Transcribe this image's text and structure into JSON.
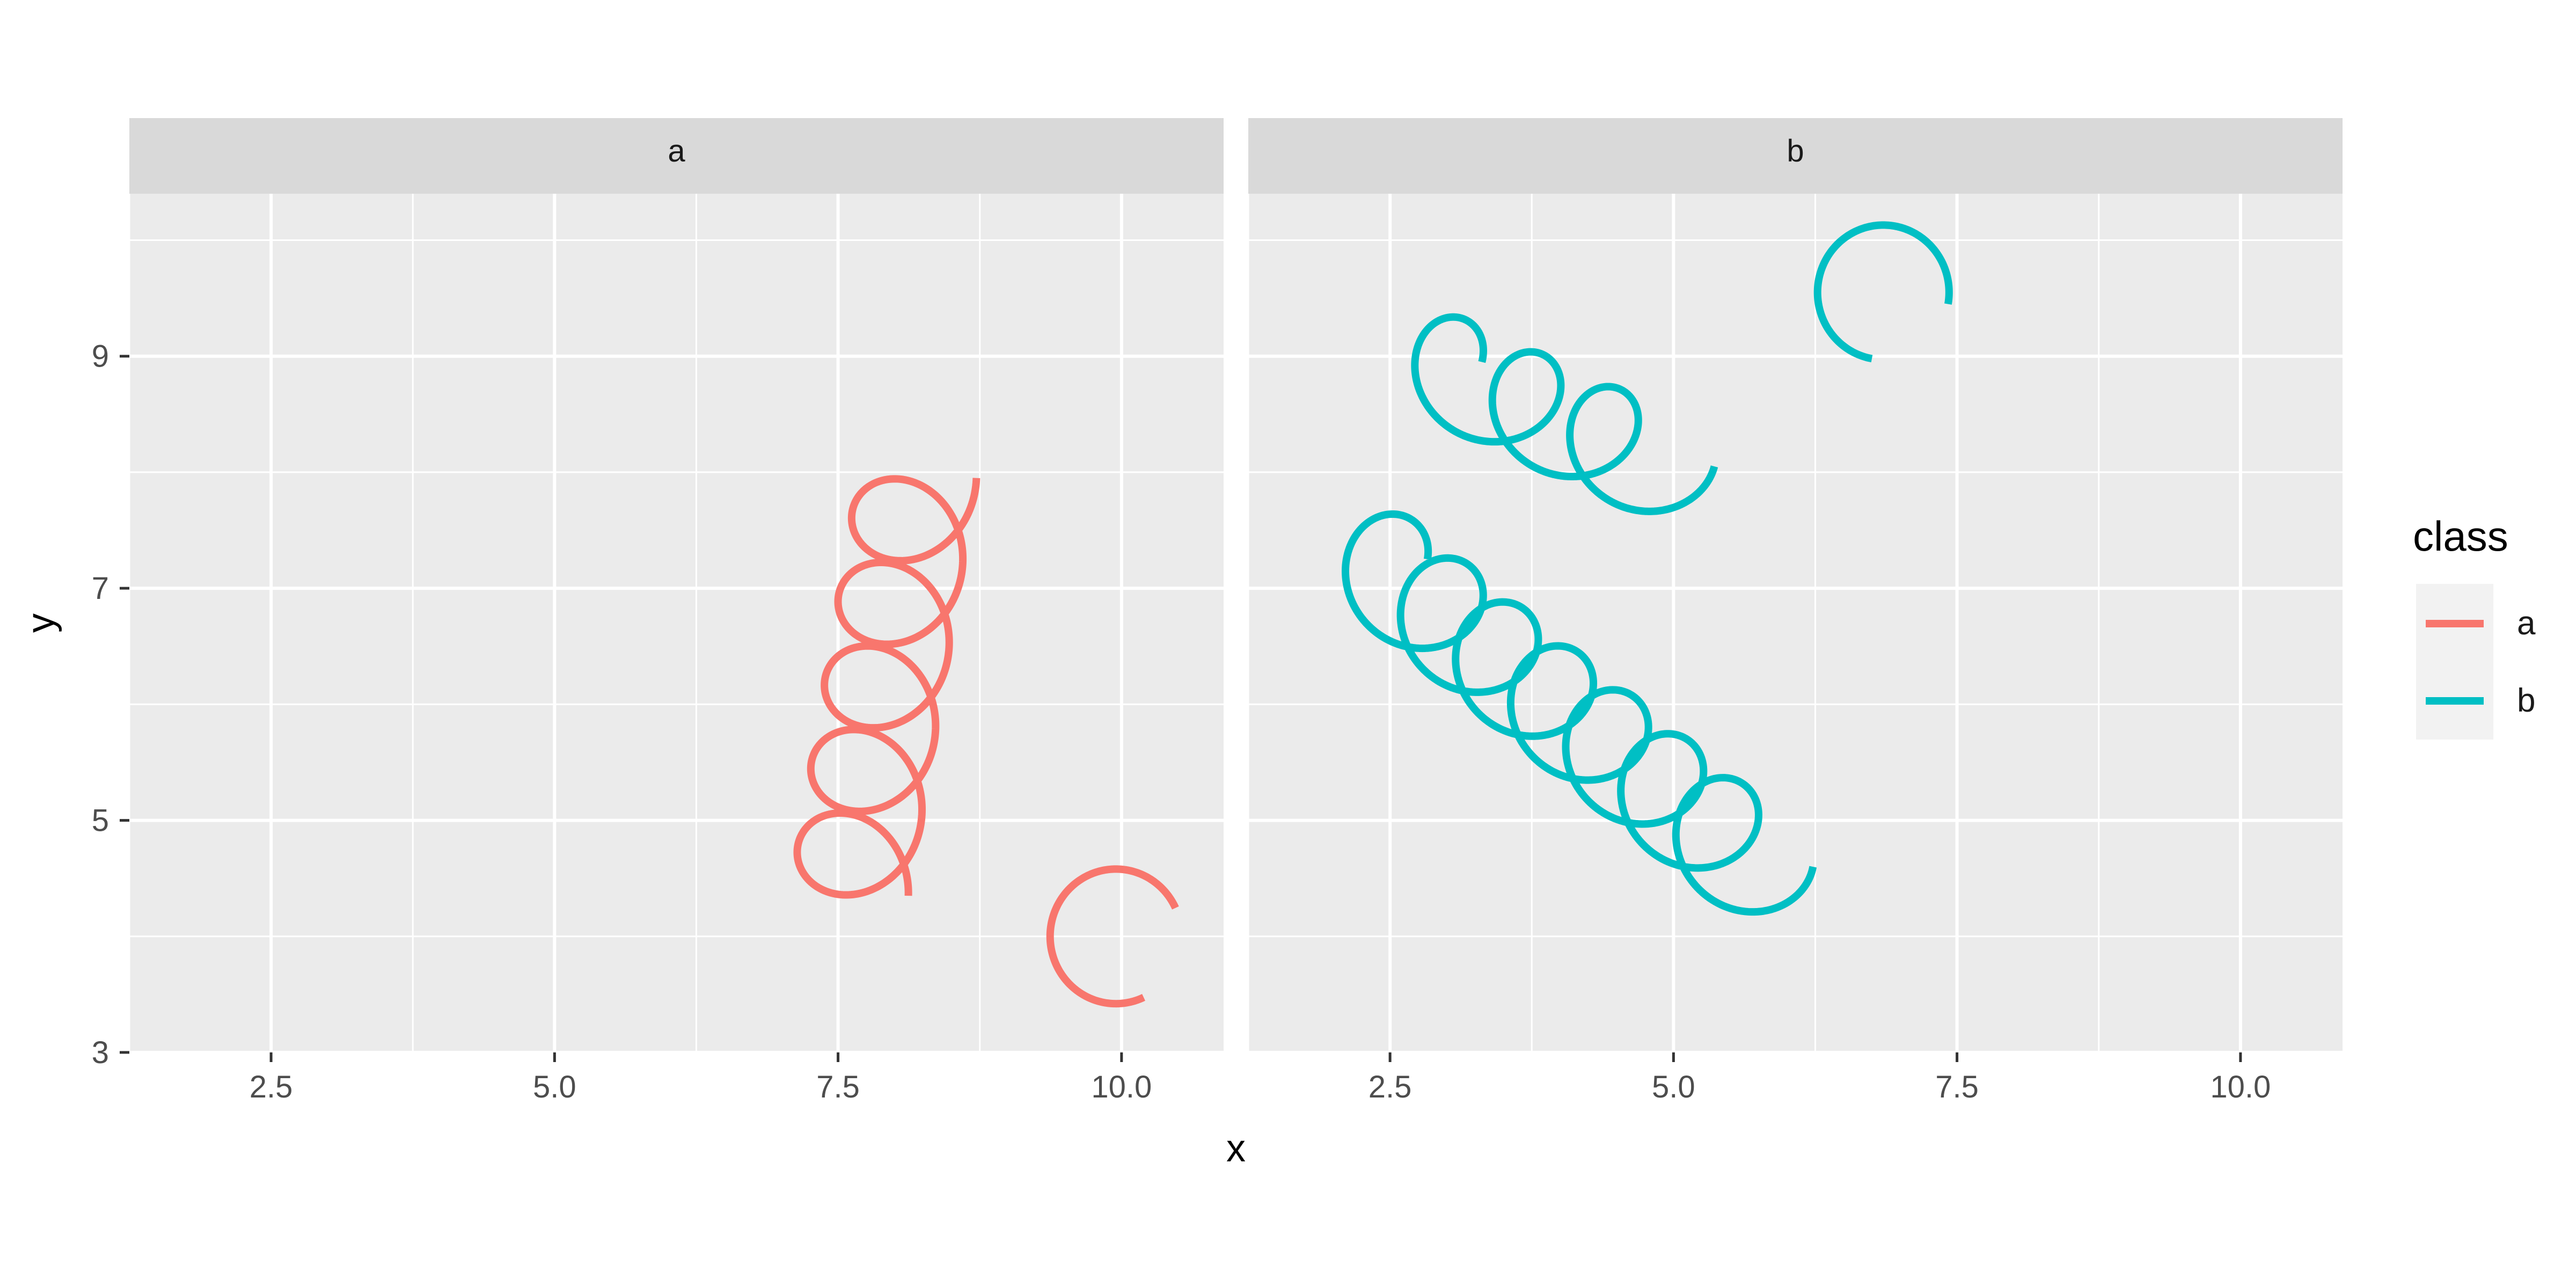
{
  "chart_data": {
    "type": "line",
    "facets": [
      "a",
      "b"
    ],
    "xlabel": "x",
    "ylabel": "y",
    "xlim": [
      1.25,
      10.9
    ],
    "ylim": [
      3,
      10.4
    ],
    "x_ticks": [
      2.5,
      5.0,
      7.5,
      10.0
    ],
    "x_tick_labels": [
      "2.5",
      "5.0",
      "7.5",
      "10.0"
    ],
    "y_ticks": [
      3,
      5,
      7,
      9
    ],
    "y_tick_labels": [
      "3",
      "5",
      "7",
      "9"
    ],
    "grid": true,
    "legend": {
      "title": "class",
      "position": "right",
      "entries": [
        {
          "label": "a",
          "color": "#F8766D"
        },
        {
          "label": "b",
          "color": "#00BFC4"
        }
      ]
    },
    "series": [
      {
        "class": "a",
        "facet": "a",
        "curve": "spiral",
        "color": "#F8766D",
        "start": [
          7.6,
          4.35
        ],
        "end": [
          8.2,
          7.95
        ],
        "loops": 5.0,
        "radius": 0.52
      },
      {
        "class": "a",
        "facet": "a",
        "curve": "arc",
        "color": "#F8766D",
        "center": [
          9.95,
          4.0
        ],
        "radius": 0.58,
        "start_angle_deg": 25,
        "sweep_deg": 270,
        "start": [
          10.45,
          4.38
        ],
        "end": [
          10.12,
          3.58
        ]
      },
      {
        "class": "b",
        "facet": "b",
        "curve": "spiral",
        "color": "#00BFC4",
        "start": [
          2.85,
          8.95
        ],
        "end": [
          4.9,
          8.05
        ],
        "loops": 3.0,
        "radius": 0.46
      },
      {
        "class": "b",
        "facet": "b",
        "curve": "spiral",
        "color": "#00BFC4",
        "start": [
          2.35,
          7.25
        ],
        "end": [
          5.75,
          4.6
        ],
        "loops": 7.0,
        "radius": 0.48
      },
      {
        "class": "b",
        "facet": "b",
        "curve": "arc",
        "color": "#00BFC4",
        "center": [
          6.85,
          9.55
        ],
        "radius": 0.58,
        "start_angle_deg": 350,
        "sweep_deg": 270,
        "start": [
          7.18,
          10.02
        ],
        "end": [
          7.05,
          9.25
        ]
      }
    ]
  }
}
